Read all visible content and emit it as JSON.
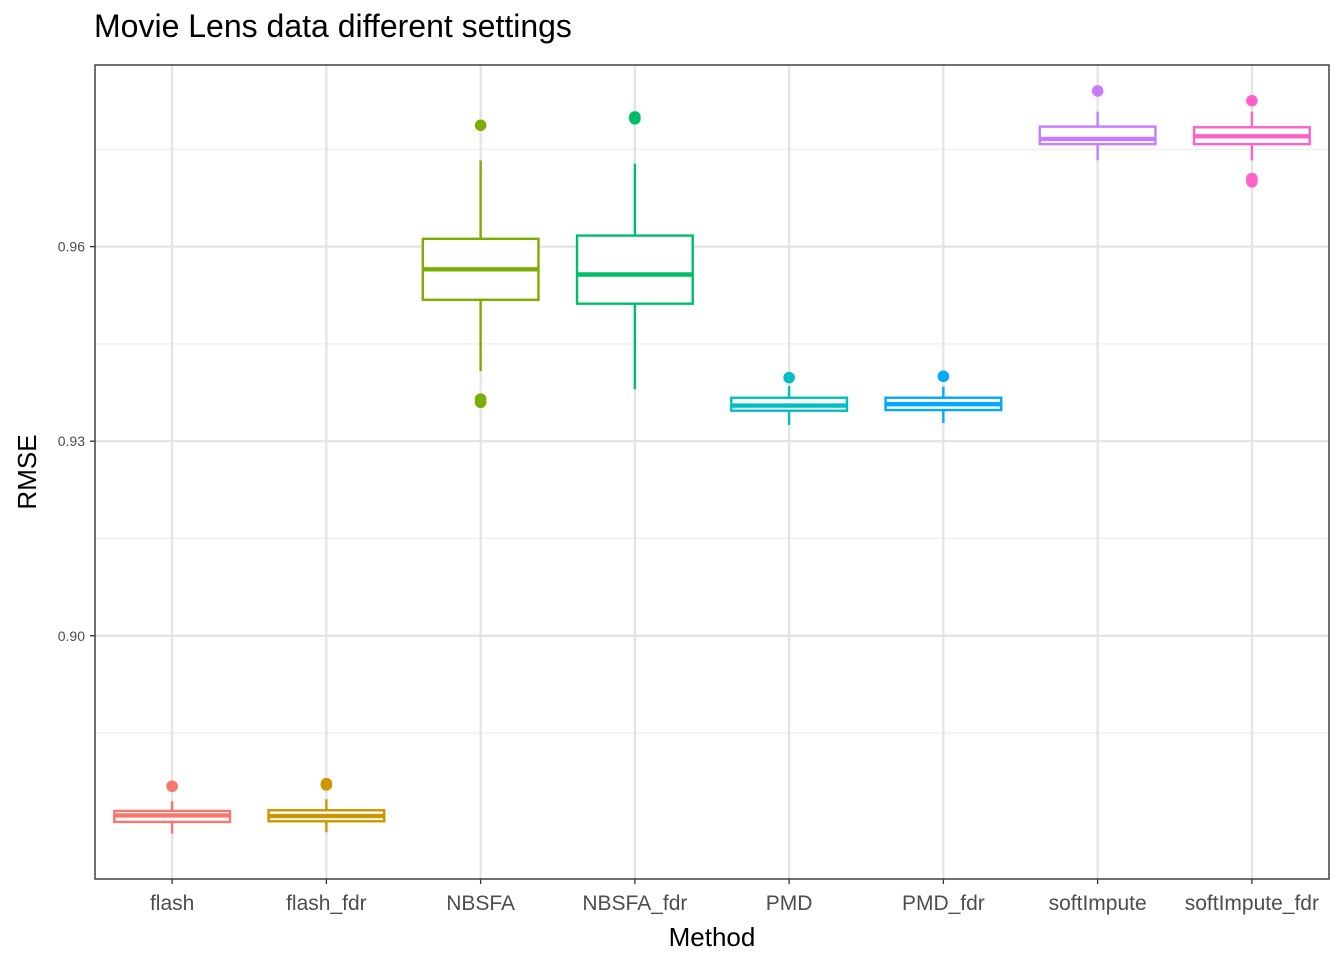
{
  "chart_data": {
    "type": "box",
    "title": "Movie Lens data different settings",
    "xlabel": "Method",
    "ylabel": "RMSE",
    "ylim": [
      0.8625,
      0.988
    ],
    "yticks": [
      "0.90",
      "0.93",
      "0.96"
    ],
    "grid": true,
    "legend": "none",
    "categories": [
      "flash",
      "flash_fdr",
      "NBSFA",
      "NBSFA_fdr",
      "PMD",
      "PMD_fdr",
      "softImpute",
      "softImpute_fdr"
    ],
    "colors": [
      "#F8766D",
      "#CD9600",
      "#7CAE00",
      "#00BE67",
      "#00BFC4",
      "#00A9FF",
      "#C77CFF",
      "#FF61CC"
    ],
    "boxes": [
      {
        "whisker_low": 0.8695,
        "q1": 0.8713,
        "median": 0.8723,
        "q3": 0.873,
        "whisker_high": 0.8745,
        "outliers": [
          0.8768
        ]
      },
      {
        "whisker_low": 0.8697,
        "q1": 0.8714,
        "median": 0.8722,
        "q3": 0.8731,
        "whisker_high": 0.8748,
        "outliers": [
          0.877,
          0.8772
        ]
      },
      {
        "whisker_low": 0.9408,
        "q1": 0.9518,
        "median": 0.9565,
        "q3": 0.9612,
        "whisker_high": 0.9733,
        "outliers": [
          0.936,
          0.9365,
          0.9787
        ]
      },
      {
        "whisker_low": 0.938,
        "q1": 0.9512,
        "median": 0.9557,
        "q3": 0.9617,
        "whisker_high": 0.9728,
        "outliers": [
          0.9797,
          0.98
        ]
      },
      {
        "whisker_low": 0.9325,
        "q1": 0.9347,
        "median": 0.9355,
        "q3": 0.9367,
        "whisker_high": 0.9385,
        "outliers": [
          0.9398
        ]
      },
      {
        "whisker_low": 0.9328,
        "q1": 0.9348,
        "median": 0.9357,
        "q3": 0.9367,
        "whisker_high": 0.9384,
        "outliers": [
          0.94
        ]
      },
      {
        "whisker_low": 0.9733,
        "q1": 0.9758,
        "median": 0.9766,
        "q3": 0.9785,
        "whisker_high": 0.9808,
        "outliers": [
          0.984
        ]
      },
      {
        "whisker_low": 0.9733,
        "q1": 0.9758,
        "median": 0.977,
        "q3": 0.9784,
        "whisker_high": 0.9808,
        "outliers": [
          0.97,
          0.9705,
          0.9825
        ]
      }
    ]
  }
}
